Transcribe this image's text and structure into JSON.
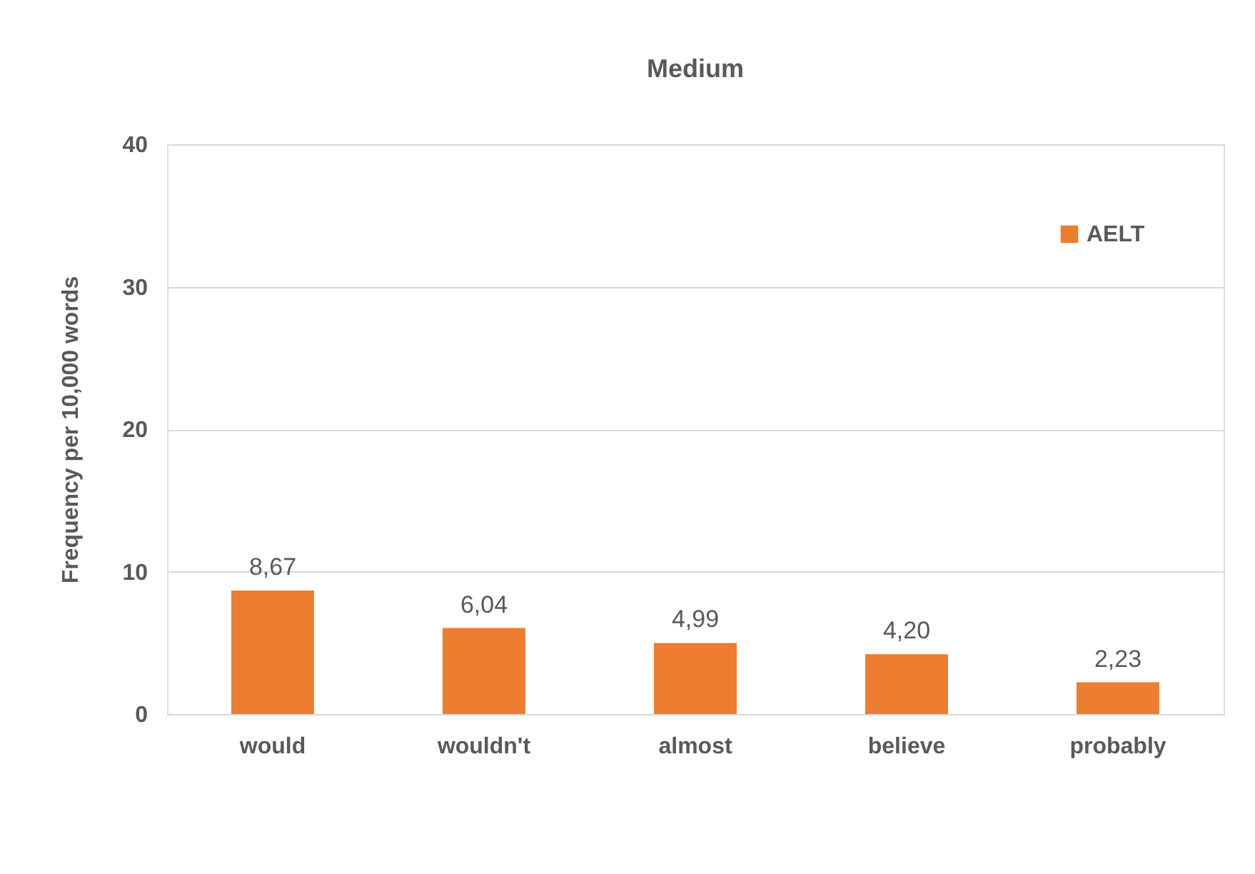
{
  "chart_data": {
    "type": "bar",
    "title": "Medium",
    "ylabel": "Frequency per 10,000 words",
    "categories": [
      "would",
      "wouldn't",
      "almost",
      "believe",
      "probably"
    ],
    "series": [
      {
        "name": "AELT",
        "color": "#ed7d31",
        "values": [
          8.67,
          6.04,
          4.99,
          4.2,
          2.23
        ],
        "value_labels": [
          "8,67",
          "6,04",
          "4,99",
          "4,20",
          "2,23"
        ]
      }
    ],
    "ylim": [
      0,
      40
    ],
    "yticks": [
      0,
      10,
      20,
      30,
      40
    ],
    "grid": "y",
    "legend": "top right"
  }
}
